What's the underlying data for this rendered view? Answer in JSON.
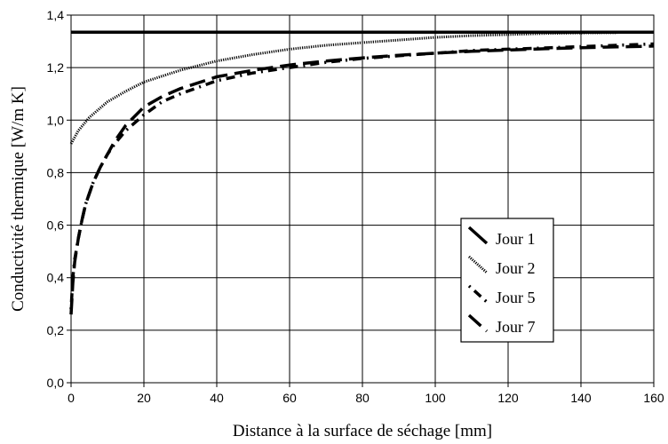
{
  "chart_data": {
    "type": "line",
    "title": "",
    "xlabel": "Distance à la surface de séchage [mm]",
    "ylabel": "Conductivité thermique [W/m K]",
    "xlim": [
      0,
      160
    ],
    "ylim": [
      0,
      1.4
    ],
    "grid": true,
    "legend_position": "bottom-right",
    "x_ticks": [
      "0",
      "20",
      "40",
      "60",
      "80",
      "100",
      "120",
      "140",
      "160"
    ],
    "y_ticks": [
      "0,0",
      "0,2",
      "0,4",
      "0,6",
      "0,8",
      "1,0",
      "1,2",
      "1,4"
    ],
    "series": [
      {
        "name": "Jour 1",
        "style": "solid",
        "color": "#000000",
        "x": [
          0,
          160
        ],
        "y": [
          1.335,
          1.335
        ]
      },
      {
        "name": "Jour 2",
        "style": "dotted",
        "color": "#000000",
        "x": [
          0,
          2,
          5,
          10,
          15,
          20,
          30,
          40,
          50,
          60,
          70,
          80,
          90,
          100,
          110,
          120,
          130,
          140,
          150
        ],
        "y": [
          0.91,
          0.96,
          1.01,
          1.07,
          1.11,
          1.145,
          1.19,
          1.225,
          1.25,
          1.27,
          1.285,
          1.295,
          1.305,
          1.315,
          1.322,
          1.326,
          1.33,
          1.332,
          1.333
        ]
      },
      {
        "name": "Jour 5",
        "style": "dash-dot",
        "color": "#000000",
        "x": [
          0,
          0.5,
          1,
          2,
          3,
          4,
          6,
          8,
          10,
          12,
          15,
          20,
          25,
          30,
          40,
          50,
          60,
          70,
          80,
          90,
          100,
          110,
          120,
          130,
          140,
          150,
          160
        ],
        "y": [
          0.28,
          0.4,
          0.47,
          0.55,
          0.62,
          0.68,
          0.76,
          0.82,
          0.87,
          0.91,
          0.96,
          1.02,
          1.07,
          1.1,
          1.15,
          1.18,
          1.2,
          1.22,
          1.235,
          1.245,
          1.255,
          1.265,
          1.27,
          1.275,
          1.28,
          1.285,
          1.29
        ]
      },
      {
        "name": "Jour 7",
        "style": "long-dash",
        "color": "#000000",
        "x": [
          0,
          0.5,
          1,
          2,
          3,
          4,
          6,
          8,
          10,
          12,
          15,
          20,
          25,
          30,
          40,
          50,
          60,
          70,
          80,
          90,
          100,
          110,
          120,
          130,
          140,
          150,
          160
        ],
        "y": [
          0.26,
          0.38,
          0.46,
          0.55,
          0.62,
          0.68,
          0.76,
          0.82,
          0.87,
          0.92,
          0.98,
          1.05,
          1.09,
          1.12,
          1.165,
          1.19,
          1.21,
          1.225,
          1.237,
          1.247,
          1.255,
          1.262,
          1.267,
          1.272,
          1.276,
          1.279,
          1.282
        ]
      }
    ]
  }
}
